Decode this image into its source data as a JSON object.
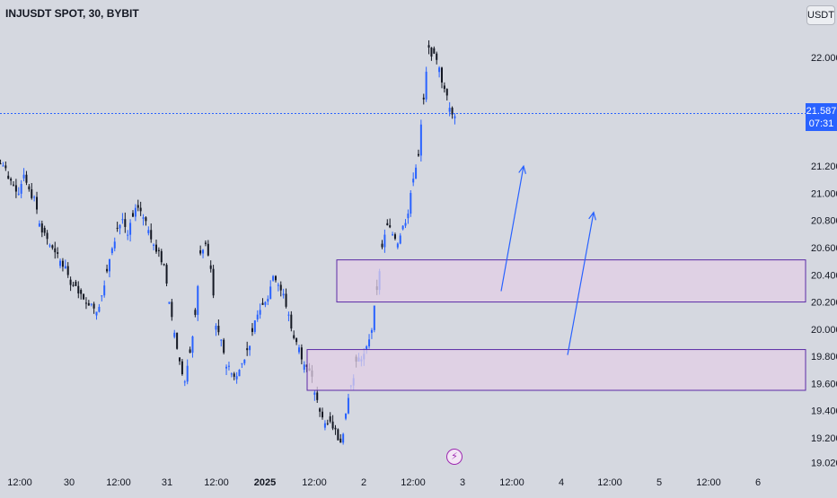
{
  "symbol": "INJUSDT SPOT, 30, BYBIT",
  "currency": "USDT",
  "icons": {
    "event": "lightning-icon"
  },
  "current_price": {
    "value": "21.587",
    "countdown": "07:31",
    "color": "#2962ff"
  },
  "colors": {
    "background": "#d5d8e0",
    "up": "#2962ff",
    "down": "#131722",
    "zone_fill": "#e1cfe6",
    "zone_border": "#5b2aa6",
    "arrow": "#2962ff"
  },
  "chart_data": {
    "type": "candlestick",
    "y_axis": {
      "ticks": [
        "22.000",
        "21.200",
        "21.000",
        "20.800",
        "20.600",
        "20.400",
        "20.200",
        "20.000",
        "19.800",
        "19.600",
        "19.400",
        "19.200",
        "19.020"
      ],
      "range": [
        19.02,
        22.2
      ]
    },
    "x_axis": {
      "ticks": [
        "12:00",
        "30",
        "12:00",
        "31",
        "12:00",
        "2025",
        "12:00",
        "2",
        "12:00",
        "3",
        "12:00",
        "4",
        "12:00",
        "5",
        "12:00",
        "6"
      ],
      "bold_ticks": [
        "2025"
      ]
    },
    "series": [
      {
        "values_close": [
          21.22,
          21.12,
          21.08,
          21.02,
          21.15,
          21.05,
          20.95,
          20.8,
          20.7,
          20.62,
          20.55,
          20.5,
          20.45,
          20.35,
          20.3,
          20.25,
          20.22,
          20.2,
          20.15,
          20.25,
          20.4,
          20.62,
          20.75,
          20.8,
          20.7,
          20.82,
          20.9,
          20.85,
          20.75,
          20.65,
          20.55,
          20.45,
          20.2,
          19.95,
          19.75,
          19.6,
          19.8,
          20.1,
          20.55,
          20.6,
          20.45,
          20.05,
          19.9,
          19.75,
          19.7,
          19.65,
          19.75,
          19.85,
          19.95,
          20.1,
          20.2,
          20.25,
          20.4,
          20.35,
          20.25,
          20.1,
          19.95,
          19.85,
          19.75,
          19.7,
          19.55,
          19.4,
          19.3,
          19.35,
          19.25,
          19.15,
          19.35,
          19.6,
          19.75,
          19.8,
          19.85,
          20.0,
          20.3,
          20.6,
          20.75,
          20.7,
          20.65,
          20.75,
          20.85,
          21.1,
          21.3,
          21.7,
          22.05,
          22.0,
          21.9,
          21.75,
          21.65,
          21.59
        ],
        "ohlc_note": "approximate close path read from the 30-minute candles"
      }
    ],
    "annotations": {
      "zones": [
        {
          "label": "upper-demand-zone",
          "price_top": 20.51,
          "price_bottom": 20.2
        },
        {
          "label": "lower-demand-zone",
          "price_top": 19.85,
          "price_bottom": 19.55
        }
      ],
      "arrows": [
        {
          "from_price": 20.28,
          "to_price": 21.2
        },
        {
          "from_price": 19.81,
          "to_price": 20.86
        }
      ]
    }
  }
}
